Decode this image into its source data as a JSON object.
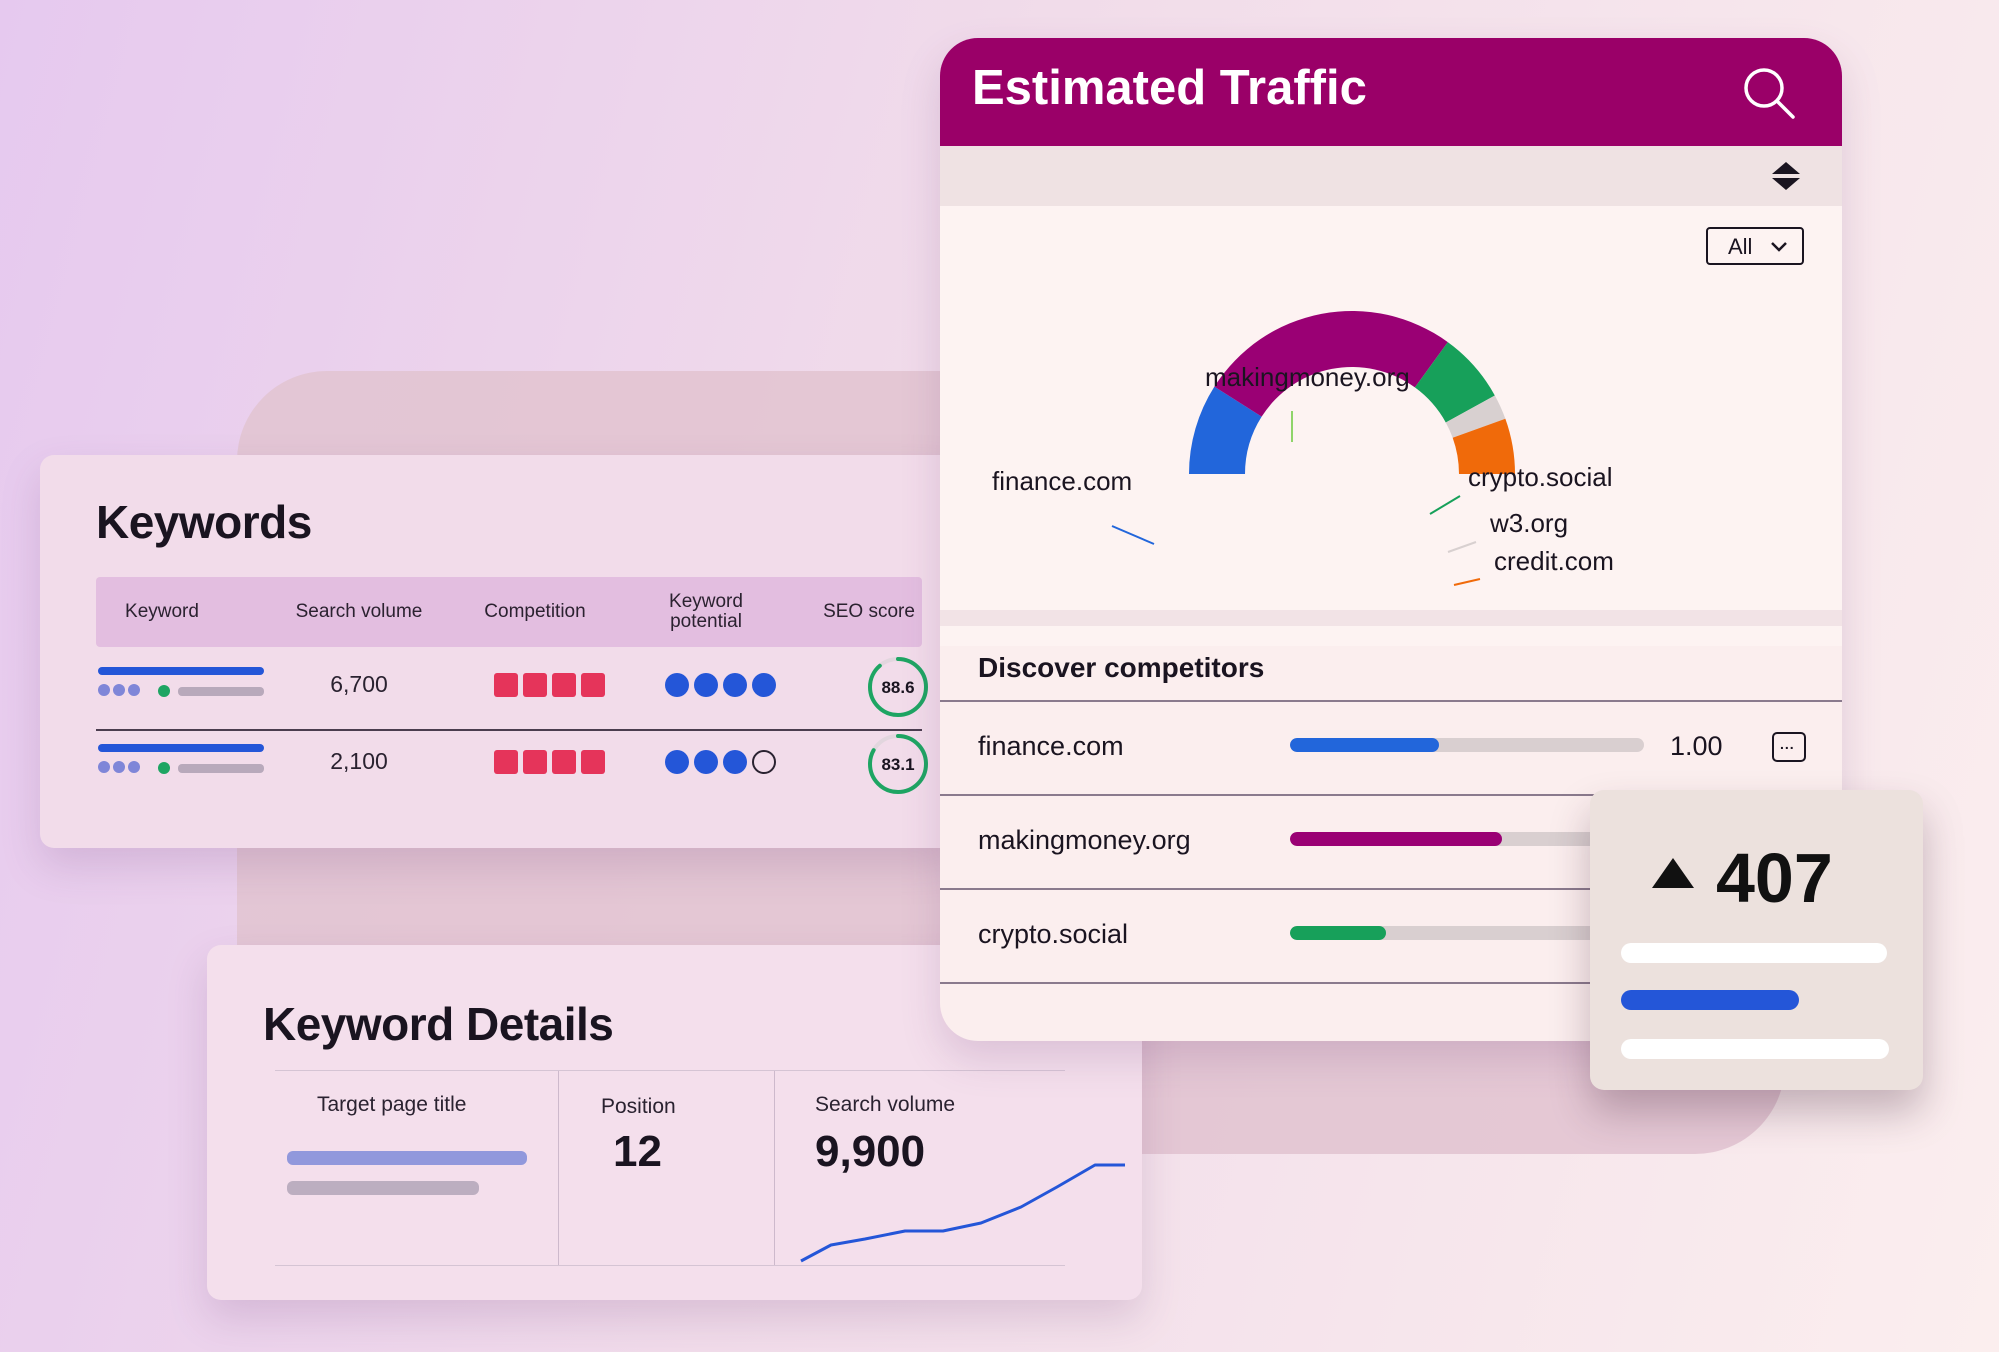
{
  "keywords": {
    "title": "Keywords",
    "columns": {
      "keyword": "Keyword",
      "search_volume": "Search volume",
      "competition": "Competition",
      "potential_line1": "Keyword",
      "potential_line2": "potential",
      "seo_score": "SEO score"
    },
    "rows": [
      {
        "volume": "6,700",
        "competition_level": 4,
        "potential_level": 4,
        "seo_score": "88.6",
        "seo_fraction": 0.886
      },
      {
        "volume": "2,100",
        "competition_level": 4,
        "potential_level": 3,
        "seo_score": "83.1",
        "seo_fraction": 0.831
      }
    ],
    "colors": {
      "competition": "#e5345a",
      "potential": "#2456d8",
      "score_ring": "#1ea563"
    }
  },
  "keyword_details": {
    "title": "Keyword Details",
    "target_page_title_label": "Target page title",
    "position_label": "Position",
    "position_value": "12",
    "search_volume_label": "Search volume",
    "search_volume_value": "9,900"
  },
  "estimated_traffic": {
    "title": "Estimated Traffic",
    "search_icon": "search-icon",
    "sort_icon": "sort-icon",
    "filter": {
      "selected": "All"
    },
    "header_color": "#9a0068",
    "segments": [
      {
        "label": "finance.com",
        "share": 0.18,
        "color": "#2266db"
      },
      {
        "label": "makingmoney.org",
        "share": 0.52,
        "color": "#9a0074"
      },
      {
        "label": "crypto.social",
        "share": 0.14,
        "color": "#17a05a"
      },
      {
        "label": "w3.org",
        "share": 0.05,
        "color": "#d8d0d0"
      },
      {
        "label": "credit.com",
        "share": 0.11,
        "color": "#f06a0a"
      }
    ]
  },
  "discover_competitors": {
    "title": "Discover competitors",
    "rows": [
      {
        "name": "finance.com",
        "fraction": 0.42,
        "value": "1.00",
        "color": "#2266db"
      },
      {
        "name": "makingmoney.org",
        "fraction": 0.6,
        "value": "",
        "color": "#9a0074"
      },
      {
        "name": "crypto.social",
        "fraction": 0.27,
        "value": "",
        "color": "#17a05a"
      }
    ],
    "menu_icon": "more-options-icon"
  },
  "stat_card": {
    "value": "407",
    "trend_icon": "triangle-up-icon"
  }
}
